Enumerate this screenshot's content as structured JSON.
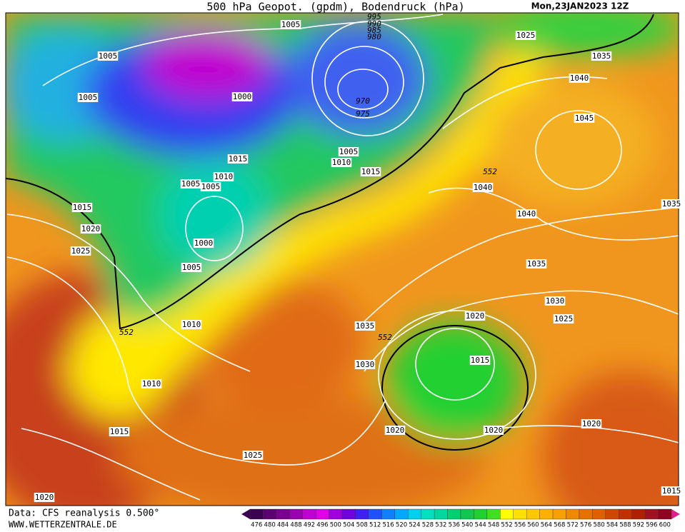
{
  "header": {
    "title": "500 hPa Geopot. (gpdm), Bodendruck (hPa)",
    "date": "Mon,23JAN2023 12Z"
  },
  "isobar_labels": [
    "1005",
    "995",
    "990",
    "985",
    "980",
    "1025",
    "1005",
    "1035",
    "1005",
    "1000",
    "970",
    "975",
    "1040",
    "1045",
    "1015",
    "1005",
    "1010",
    "1015",
    "1010",
    "1005",
    "1005",
    "552",
    "1040",
    "1015",
    "1040",
    "1020",
    "1000",
    "1025",
    "1035",
    "1005",
    "1035",
    "1030",
    "1020",
    "1025",
    "1010",
    "552",
    "1035",
    "552",
    "1015",
    "1030",
    "1010",
    "1020",
    "1020",
    "1020",
    "1015",
    "1025",
    "1020",
    "1015"
  ],
  "footer": {
    "source": "Data: CFS reanalysis 0.500°",
    "site": "WWW.WETTERZENTRALE.DE"
  },
  "scale": {
    "values": [
      476,
      480,
      484,
      488,
      492,
      496,
      500,
      504,
      508,
      512,
      516,
      520,
      524,
      528,
      532,
      536,
      540,
      544,
      548,
      552,
      556,
      560,
      564,
      568,
      572,
      576,
      580,
      584,
      588,
      592,
      596,
      600
    ],
    "colors": [
      "#3c0050",
      "#5a0070",
      "#7a0090",
      "#9a00b0",
      "#c000d0",
      "#e000e8",
      "#a000e0",
      "#7000e0",
      "#4020f0",
      "#2050ff",
      "#1080ff",
      "#00a8ff",
      "#00d0f0",
      "#00e0c0",
      "#00d8a0",
      "#00d070",
      "#10c850",
      "#20d030",
      "#40e020",
      "#ffff00",
      "#ffe000",
      "#ffc800",
      "#ffb000",
      "#f8a000",
      "#f08800",
      "#e87000",
      "#e06000",
      "#d04800",
      "#c03000",
      "#b02000",
      "#a01020",
      "#900020"
    ]
  }
}
